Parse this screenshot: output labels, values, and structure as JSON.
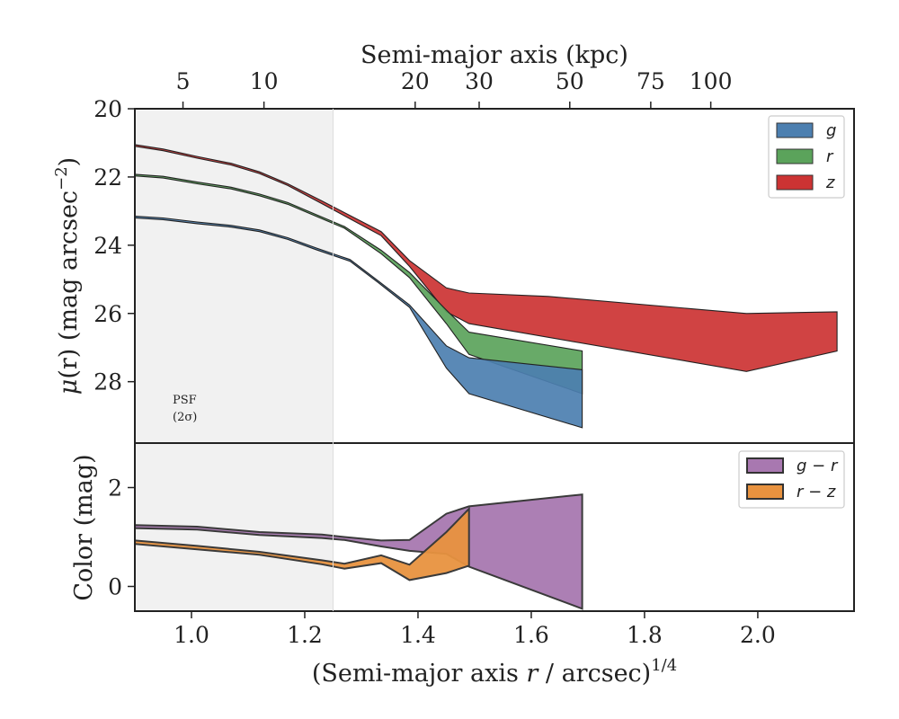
{
  "chart_data": [
    {
      "type": "area",
      "panel": "surface-brightness",
      "xlabel": "(Semi-major axis r / arcsec)^{1/4}",
      "xlabel_parts": {
        "before": "(Semi-major axis ",
        "var": "r",
        "after": " / arcsec)",
        "exp": "1/4"
      },
      "ylabel": "μ(r) (mag arcsec⁻²)",
      "ylabel_parts": {
        "mu": "μ",
        "var": "(r)",
        "unit": " (mag arcsec",
        "exp": "−2",
        "close": ")"
      },
      "top_xlabel": "Semi-major axis (kpc)",
      "top_xticks": [
        {
          "label": "5",
          "x": 0.985
        },
        {
          "label": "10",
          "x": 1.128
        },
        {
          "label": "20",
          "x": 1.395
        },
        {
          "label": "30",
          "x": 1.508
        },
        {
          "label": "50",
          "x": 1.668
        },
        {
          "label": "75",
          "x": 1.811
        },
        {
          "label": "100",
          "x": 1.917
        }
      ],
      "xlim": [
        0.9,
        2.17
      ],
      "ylim": [
        29.8,
        20.0
      ],
      "yticks": [
        20,
        22,
        24,
        26,
        28
      ],
      "ytick_labels": [
        "20",
        "22",
        "24",
        "26",
        "28"
      ],
      "shaded_region_x": [
        0.9,
        1.25
      ],
      "psf_label": "PSF",
      "psf_sublabel": "(2σ)",
      "legend_position": "top-right",
      "series": [
        {
          "name": "g",
          "color": "#4c7fb0",
          "upper": [
            [
              0.9,
              23.15
            ],
            [
              0.95,
              23.2
            ],
            [
              1.01,
              23.32
            ],
            [
              1.07,
              23.42
            ],
            [
              1.12,
              23.55
            ],
            [
              1.17,
              23.78
            ],
            [
              1.22,
              24.08
            ],
            [
              1.28,
              24.42
            ],
            [
              1.33,
              25.05
            ],
            [
              1.385,
              25.75
            ],
            [
              1.45,
              26.95
            ],
            [
              1.49,
              27.3
            ],
            [
              1.69,
              27.65
            ]
          ],
          "lower": [
            [
              0.9,
              23.2
            ],
            [
              0.95,
              23.25
            ],
            [
              1.01,
              23.37
            ],
            [
              1.07,
              23.47
            ],
            [
              1.12,
              23.6
            ],
            [
              1.17,
              23.83
            ],
            [
              1.22,
              24.13
            ],
            [
              1.28,
              24.47
            ],
            [
              1.33,
              25.1
            ],
            [
              1.385,
              25.82
            ],
            [
              1.45,
              27.6
            ],
            [
              1.49,
              28.35
            ],
            [
              1.69,
              29.35
            ]
          ]
        },
        {
          "name": "r",
          "color": "#5ba35b",
          "upper": [
            [
              0.9,
              21.92
            ],
            [
              0.95,
              21.98
            ],
            [
              1.01,
              22.15
            ],
            [
              1.07,
              22.3
            ],
            [
              1.12,
              22.5
            ],
            [
              1.17,
              22.75
            ],
            [
              1.22,
              23.1
            ],
            [
              1.27,
              23.45
            ],
            [
              1.335,
              24.15
            ],
            [
              1.385,
              24.8
            ],
            [
              1.45,
              25.9
            ],
            [
              1.49,
              26.55
            ],
            [
              1.69,
              27.1
            ]
          ],
          "lower": [
            [
              0.9,
              21.97
            ],
            [
              0.95,
              22.03
            ],
            [
              1.01,
              22.2
            ],
            [
              1.07,
              22.35
            ],
            [
              1.12,
              22.55
            ],
            [
              1.17,
              22.8
            ],
            [
              1.22,
              23.15
            ],
            [
              1.27,
              23.5
            ],
            [
              1.335,
              24.25
            ],
            [
              1.385,
              24.95
            ],
            [
              1.45,
              26.3
            ],
            [
              1.49,
              27.2
            ],
            [
              1.69,
              28.35
            ]
          ]
        },
        {
          "name": "z",
          "color": "#cc3333",
          "upper": [
            [
              0.9,
              21.05
            ],
            [
              0.95,
              21.18
            ],
            [
              1.01,
              21.4
            ],
            [
              1.07,
              21.6
            ],
            [
              1.12,
              21.85
            ],
            [
              1.17,
              22.2
            ],
            [
              1.23,
              22.7
            ],
            [
              1.335,
              23.6
            ],
            [
              1.385,
              24.45
            ],
            [
              1.45,
              25.25
            ],
            [
              1.49,
              25.4
            ],
            [
              1.63,
              25.5
            ],
            [
              1.98,
              26.0
            ],
            [
              2.14,
              25.95
            ]
          ],
          "lower": [
            [
              0.9,
              21.1
            ],
            [
              0.95,
              21.23
            ],
            [
              1.01,
              21.45
            ],
            [
              1.07,
              21.65
            ],
            [
              1.12,
              21.9
            ],
            [
              1.17,
              22.25
            ],
            [
              1.23,
              22.78
            ],
            [
              1.335,
              23.72
            ],
            [
              1.385,
              24.62
            ],
            [
              1.45,
              25.95
            ],
            [
              1.49,
              26.3
            ],
            [
              1.98,
              27.7
            ],
            [
              2.14,
              27.1
            ]
          ]
        }
      ]
    },
    {
      "type": "area",
      "panel": "color",
      "xlabel": "(Semi-major axis r / arcsec)^{1/4}",
      "ylabel": "Color (mag)",
      "xlim": [
        0.9,
        2.17
      ],
      "ylim": [
        -0.5,
        2.9
      ],
      "xticks": [
        1.0,
        1.2,
        1.4,
        1.6,
        1.8,
        2.0
      ],
      "xtick_labels": [
        "1.0",
        "1.2",
        "1.4",
        "1.6",
        "1.8",
        "2.0"
      ],
      "yticks": [
        0,
        2
      ],
      "ytick_labels": [
        "0",
        "2"
      ],
      "legend_position": "top-right",
      "series": [
        {
          "name": "g − r",
          "color": "#a878b0",
          "upper": [
            [
              0.9,
              1.24
            ],
            [
              1.01,
              1.21
            ],
            [
              1.12,
              1.1
            ],
            [
              1.23,
              1.05
            ],
            [
              1.27,
              1.0
            ],
            [
              1.335,
              0.93
            ],
            [
              1.385,
              0.94
            ],
            [
              1.45,
              1.47
            ],
            [
              1.49,
              1.62
            ],
            [
              1.69,
              1.86
            ]
          ],
          "lower": [
            [
              0.9,
              1.18
            ],
            [
              1.01,
              1.15
            ],
            [
              1.12,
              1.04
            ],
            [
              1.23,
              0.98
            ],
            [
              1.27,
              0.94
            ],
            [
              1.335,
              0.81
            ],
            [
              1.385,
              0.72
            ],
            [
              1.45,
              0.66
            ],
            [
              1.49,
              0.4
            ],
            [
              1.69,
              -0.45
            ]
          ]
        },
        {
          "name": "r − z",
          "color": "#e8923f",
          "upper": [
            [
              0.9,
              0.93
            ],
            [
              1.01,
              0.82
            ],
            [
              1.12,
              0.7
            ],
            [
              1.23,
              0.53
            ],
            [
              1.27,
              0.46
            ],
            [
              1.335,
              0.63
            ],
            [
              1.385,
              0.44
            ],
            [
              1.45,
              1.1
            ],
            [
              1.49,
              1.57
            ]
          ],
          "lower": [
            [
              0.9,
              0.86
            ],
            [
              1.01,
              0.75
            ],
            [
              1.12,
              0.64
            ],
            [
              1.23,
              0.45
            ],
            [
              1.27,
              0.36
            ],
            [
              1.335,
              0.47
            ],
            [
              1.385,
              0.13
            ],
            [
              1.45,
              0.27
            ],
            [
              1.49,
              0.42
            ]
          ]
        }
      ]
    }
  ]
}
